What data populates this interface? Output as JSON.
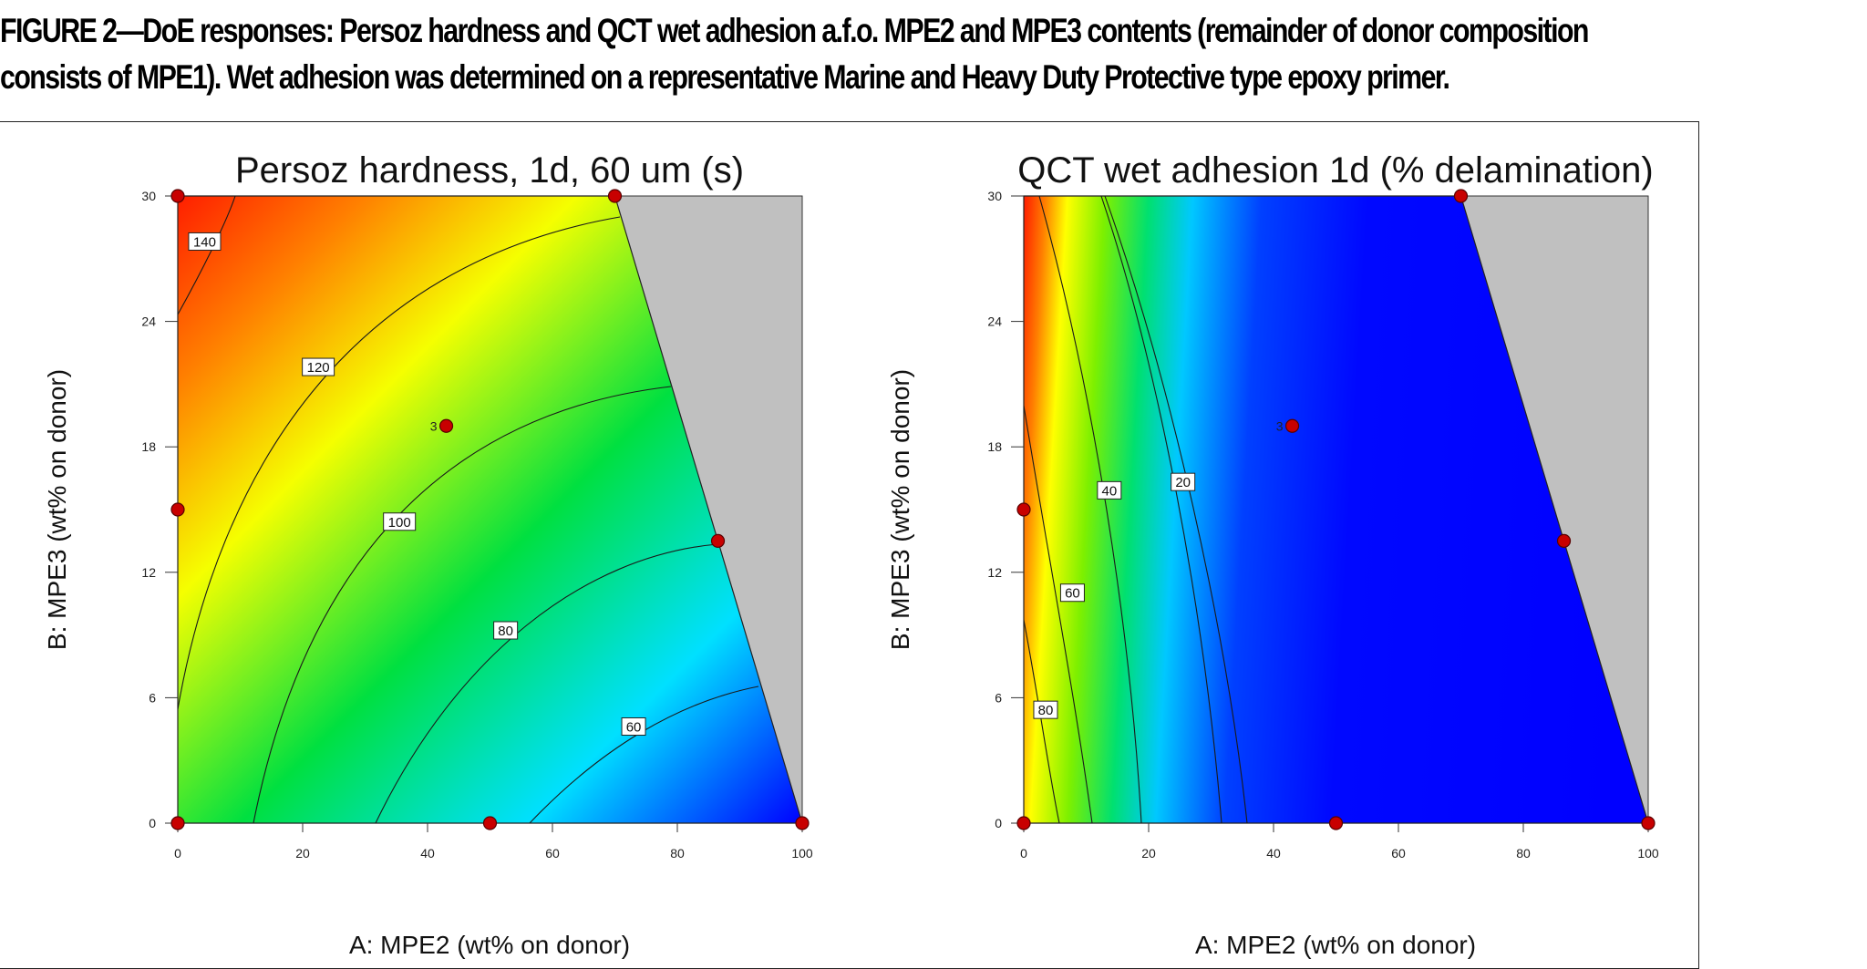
{
  "caption": {
    "line1": "FIGURE 2—DoE responses: Persoz hardness and QCT wet adhesion a.f.o. MPE2 and MPE3 contents (remainder of donor composition",
    "line2": "consists of MPE1). Wet adhesion was determined on a representative Marine and Heavy Duty Protective type epoxy primer."
  },
  "chart_data": [
    {
      "type": "heatmap",
      "title": "Persoz hardness, 1d, 60 um (s)",
      "xlabel": "A: MPE2 (wt% on donor)",
      "ylabel": "B: MPE3 (wt% on donor)",
      "xlim": [
        0,
        100
      ],
      "ylim": [
        0,
        30
      ],
      "xticks": [
        0,
        20,
        40,
        60,
        80,
        100
      ],
      "yticks": [
        0,
        6,
        12,
        18,
        24,
        30
      ],
      "feasible_region": [
        [
          0,
          0
        ],
        [
          100,
          0
        ],
        [
          70,
          30
        ],
        [
          0,
          30
        ]
      ],
      "contour_levels": [
        140,
        120,
        100,
        80,
        60
      ],
      "contour_labels": [
        {
          "text": "140",
          "x": 4.3,
          "y": 27.8
        },
        {
          "text": "120",
          "x": 22.5,
          "y": 21.8
        },
        {
          "text": "100",
          "x": 35.5,
          "y": 14.4
        },
        {
          "text": "80",
          "x": 52.5,
          "y": 9.2
        },
        {
          "text": "60",
          "x": 73.0,
          "y": 4.6
        }
      ],
      "design_points": [
        {
          "x": 0,
          "y": 0
        },
        {
          "x": 0,
          "y": 15
        },
        {
          "x": 0,
          "y": 30
        },
        {
          "x": 70,
          "y": 30
        },
        {
          "x": 43,
          "y": 19,
          "label": "3"
        },
        {
          "x": 50,
          "y": 0
        },
        {
          "x": 100,
          "y": 0
        },
        {
          "x": 86.5,
          "y": 13.5
        }
      ],
      "color_scale": "red (high) → yellow → green → cyan → blue (low)"
    },
    {
      "type": "heatmap",
      "title": "QCT wet adhesion 1d (% delamination)",
      "xlabel": "A: MPE2 (wt% on donor)",
      "ylabel": "B: MPE3 (wt% on donor)",
      "xlim": [
        0,
        100
      ],
      "ylim": [
        0,
        30
      ],
      "xticks": [
        0,
        20,
        40,
        60,
        80,
        100
      ],
      "yticks": [
        0,
        6,
        12,
        18,
        24,
        30
      ],
      "feasible_region": [
        [
          0,
          0
        ],
        [
          100,
          0
        ],
        [
          70,
          30
        ],
        [
          0,
          30
        ]
      ],
      "contour_levels": [
        80,
        60,
        40,
        20
      ],
      "contour_labels": [
        {
          "text": "80",
          "x": 3.5,
          "y": 5.4
        },
        {
          "text": "60",
          "x": 7.8,
          "y": 11.0
        },
        {
          "text": "40",
          "x": 13.7,
          "y": 15.9
        },
        {
          "text": "20",
          "x": 25.5,
          "y": 16.3
        }
      ],
      "design_points": [
        {
          "x": 0,
          "y": 0
        },
        {
          "x": 0,
          "y": 15
        },
        {
          "x": 70,
          "y": 30
        },
        {
          "x": 43,
          "y": 19,
          "label": "3"
        },
        {
          "x": 50,
          "y": 0
        },
        {
          "x": 100,
          "y": 0
        },
        {
          "x": 86.5,
          "y": 13.5
        }
      ],
      "color_scale": "red (high) → yellow → green → cyan → blue (low)"
    }
  ]
}
